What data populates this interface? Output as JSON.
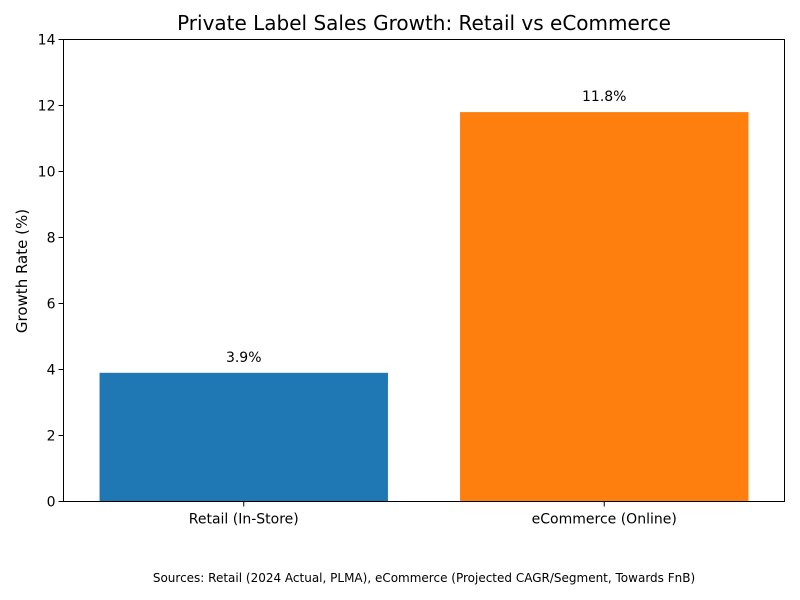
{
  "chart_data": {
    "type": "bar",
    "title": "Private Label Sales Growth: Retail vs eCommerce",
    "xlabel": "",
    "ylabel": "Growth Rate (%)",
    "ylim": [
      0,
      14
    ],
    "yticks": [
      0,
      2,
      4,
      6,
      8,
      10,
      12,
      14
    ],
    "categories": [
      "Retail (In-Store)",
      "eCommerce (Online)"
    ],
    "values": [
      3.9,
      11.8
    ],
    "value_labels": [
      "3.9%",
      "11.8%"
    ],
    "colors": [
      "#1f77b4",
      "#ff7f0e"
    ],
    "grid": false,
    "legend": "none",
    "footnote": "Sources: Retail (2024 Actual, PLMA), eCommerce (Projected CAGR/Segment, Towards FnB)"
  }
}
